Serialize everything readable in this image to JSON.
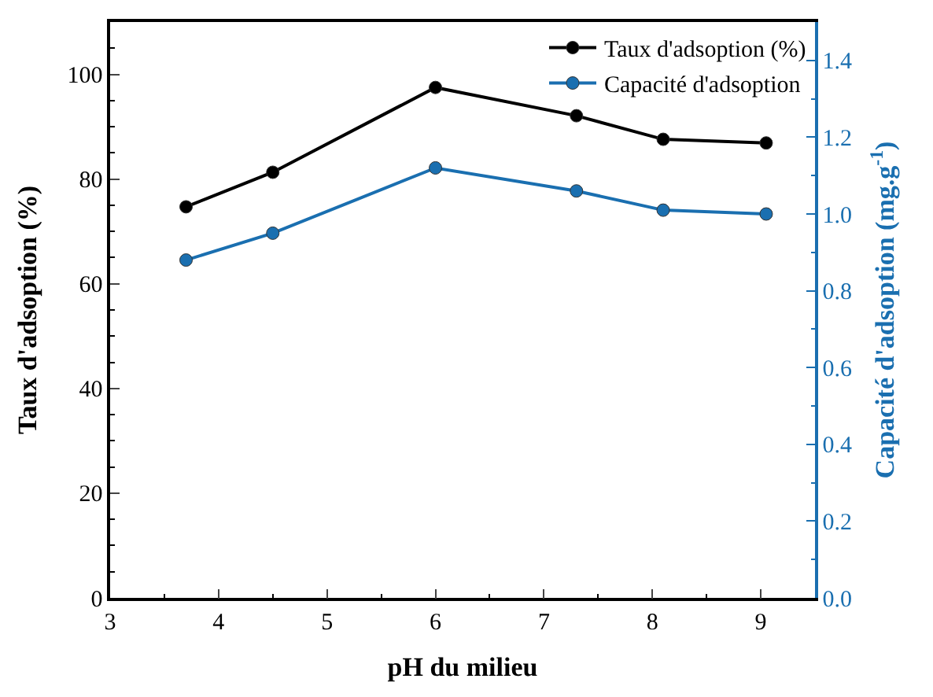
{
  "chart_data": {
    "type": "line",
    "xlabel": "pH du milieu",
    "ylabel": "Taux d'adsoption (%)",
    "y2label": "Capacité d'adsoption (mg.g$^{-1}$)",
    "x": [
      3.7,
      4.5,
      6,
      7.3,
      8.1,
      9.05
    ],
    "series": [
      {
        "name": "Taux d'adsoption (%)",
        "color": "#000000",
        "values": [
          74.7,
          81.3,
          97.5,
          92.1,
          87.6,
          86.9
        ]
      },
      {
        "name": "Capacité d'adsoption",
        "color": "#1a6fb0",
        "axis": "y2",
        "values": [
          0.88,
          0.95,
          1.12,
          1.06,
          1.01,
          1.0
        ]
      }
    ],
    "xlim": [
      3,
      9.5
    ],
    "xticks": [
      3,
      4,
      5,
      6,
      7,
      8,
      9
    ],
    "ylim": [
      0,
      110
    ],
    "yticks": [
      0,
      20,
      40,
      60,
      80,
      100
    ],
    "y2lim": [
      0,
      1.5
    ],
    "y2ticks": [
      {
        "value": 0,
        "label": "0.0"
      },
      {
        "value": 0.2,
        "label": "0.2"
      },
      {
        "value": 0.4,
        "label": "0.4"
      },
      {
        "value": 0.6,
        "label": "0.6"
      },
      {
        "value": 0.8,
        "label": "0.8"
      },
      {
        "value": 1.0,
        "label": "1.0"
      },
      {
        "value": 1.2,
        "label": "1.2"
      },
      {
        "value": 1.4,
        "label": "1.4"
      }
    ],
    "legend": "top right",
    "marker": "circle",
    "line_style": "solid"
  }
}
